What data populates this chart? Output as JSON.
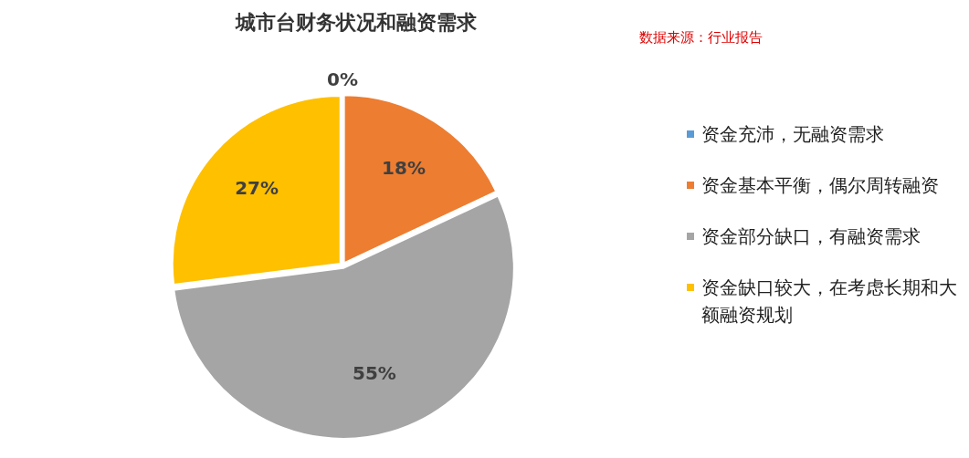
{
  "chart_data": {
    "type": "pie",
    "title": "城市台财务状况和融资需求",
    "categories": [
      "资金充沛，无融资需求",
      "资金基本平衡，偶尔周转融资",
      "资金部分缺口，有融资需求",
      "资金缺口较大，在考虑长期和大额融资规划"
    ],
    "values": [
      0,
      18,
      55,
      27
    ],
    "value_labels": [
      "0%",
      "18%",
      "55%",
      "27%"
    ],
    "colors": [
      "#5b9bd5",
      "#ed7d31",
      "#a5a5a5",
      "#ffc000"
    ],
    "legend": "right",
    "annotations": [
      "数据来源：行业报告"
    ]
  }
}
